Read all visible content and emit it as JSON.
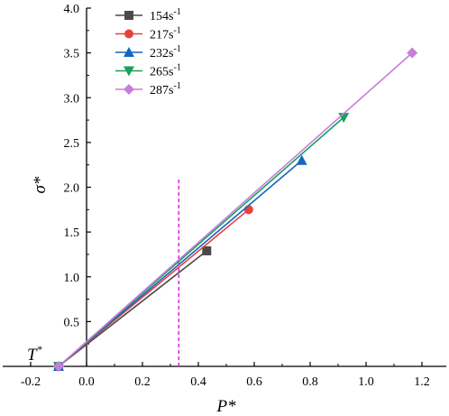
{
  "chart_data": {
    "type": "line",
    "xlabel": "P*",
    "ylabel": "σ*",
    "xlim": [
      -0.3,
      1.3
    ],
    "ylim": [
      0.0,
      4.0
    ],
    "xticks": [
      -0.2,
      0.0,
      0.2,
      0.4,
      0.6,
      0.8,
      1.0,
      1.2
    ],
    "xtick_labels": [
      "-0.2",
      "0.0",
      "0.2",
      "0.4",
      "0.6",
      "0.8",
      "1.0",
      "1.2"
    ],
    "yticks": [
      0.5,
      1.0,
      1.5,
      2.0,
      2.5,
      3.0,
      3.5,
      4.0
    ],
    "ytick_labels": [
      "0.5",
      "1.0",
      "1.5",
      "2.0",
      "2.5",
      "3.0",
      "3.5",
      "4.0"
    ],
    "grid": false,
    "legend_position": "top-left",
    "series": [
      {
        "name": "154s",
        "sup": "-1",
        "color": "#4a4a4a",
        "marker": "square",
        "x": [
          -0.1,
          0.43
        ],
        "y": [
          0.0,
          1.29
        ]
      },
      {
        "name": "217s",
        "sup": "-1",
        "color": "#e8413c",
        "marker": "circle",
        "x": [
          -0.1,
          0.58
        ],
        "y": [
          0.0,
          1.75
        ]
      },
      {
        "name": "232s",
        "sup": "-1",
        "color": "#1565c0",
        "marker": "triangle-up",
        "x": [
          -0.1,
          0.77
        ],
        "y": [
          0.0,
          2.3
        ]
      },
      {
        "name": "265s",
        "sup": "-1",
        "color": "#1aa05a",
        "marker": "triangle-down",
        "x": [
          -0.1,
          0.92
        ],
        "y": [
          0.0,
          2.78
        ]
      },
      {
        "name": "287s",
        "sup": "-1",
        "color": "#c77ddb",
        "marker": "diamond",
        "x": [
          -0.1,
          1.165
        ],
        "y": [
          0.0,
          3.5
        ]
      }
    ],
    "reference_line": {
      "x": 0.33,
      "y_range": [
        0.0,
        2.1
      ],
      "color": "#e020e0",
      "style": "dashed"
    },
    "annotation": {
      "text": "T",
      "sup": "*",
      "x": -0.12,
      "y": 0.0
    }
  }
}
